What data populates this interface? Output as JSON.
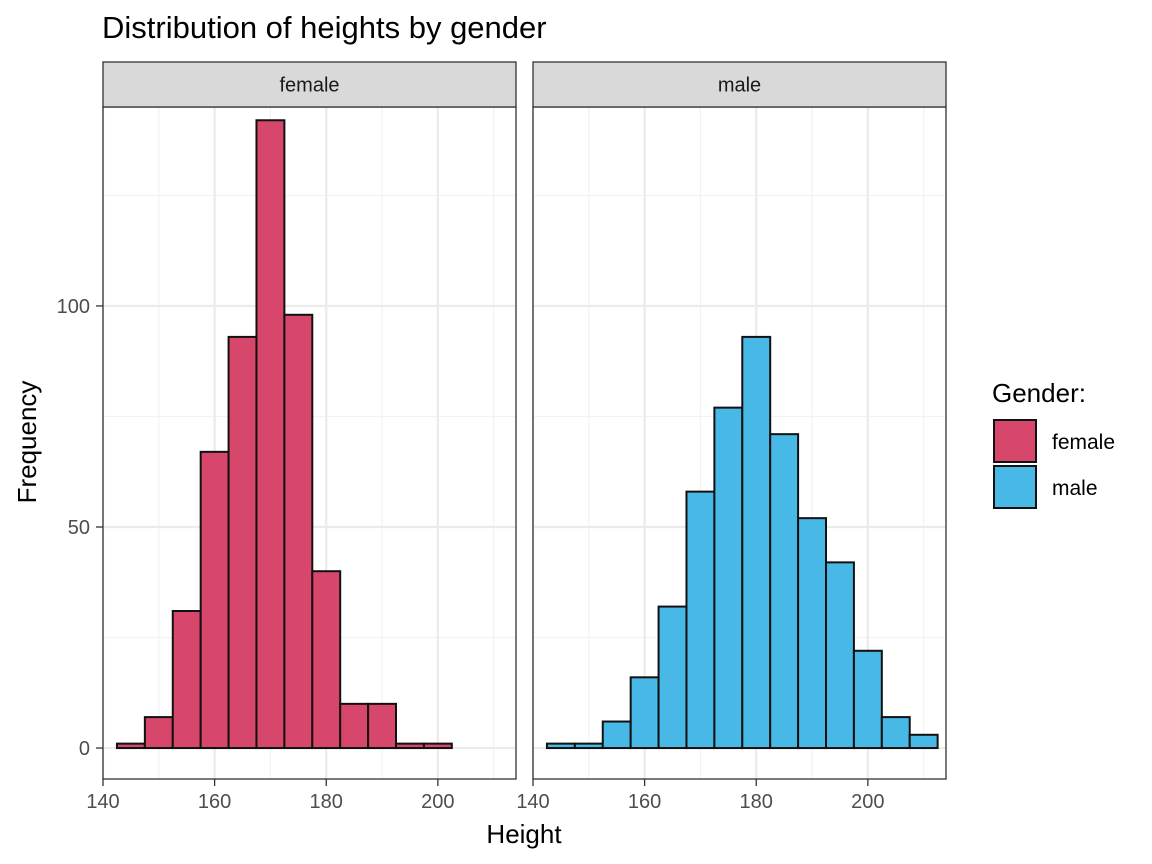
{
  "chart_data": {
    "type": "bar",
    "title": "Distribution of heights by gender",
    "xlabel": "Height",
    "ylabel": "Frequency",
    "xlim": [
      140,
      214
    ],
    "ylim": [
      -7,
      145
    ],
    "x_ticks": [
      140,
      160,
      180,
      200
    ],
    "y_ticks": [
      0,
      50,
      100
    ],
    "bin_width": 5,
    "bin_starts": [
      142.5,
      147.5,
      152.5,
      157.5,
      162.5,
      167.5,
      172.5,
      177.5,
      182.5,
      187.5,
      192.5,
      197.5,
      202.5,
      207.5
    ],
    "series": [
      {
        "name": "female",
        "color": "#D6476B",
        "values": [
          1,
          7,
          31,
          67,
          93,
          142,
          98,
          40,
          10,
          10,
          1,
          1,
          0,
          0
        ]
      },
      {
        "name": "male",
        "color": "#48B8E6",
        "values": [
          1,
          1,
          6,
          16,
          32,
          58,
          77,
          93,
          71,
          52,
          42,
          22,
          7,
          3
        ]
      }
    ],
    "legend": {
      "title": "Gender:",
      "position": "right"
    },
    "grid": true
  }
}
